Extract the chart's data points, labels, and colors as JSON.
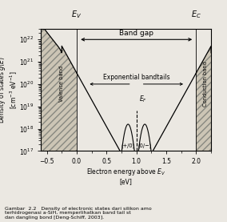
{
  "xlabel": "Electron energy above $E_V$\n[eV]",
  "ylabel": "Density of states $g(E)$\n[cm$^{-3}$ eV$^{-1}$]",
  "xlim": [
    -0.6,
    2.25
  ],
  "ymin": 1e+17,
  "ymax": 3e+22,
  "EV": 0.0,
  "EC": 2.0,
  "EF": 1.0,
  "band_gap_label": "Band gap",
  "valence_band_label": "Valence band",
  "conduction_band_label": "Conduction band",
  "exp_bandtails_label": "Exponential bandtails",
  "dangling_pos_label": "(+/0)",
  "dangling_neg_label": "(0/−)",
  "EF_label": "$E_F$",
  "EV_label": "$E_V$",
  "EC_label": "$E_C$",
  "bg_color": "#ebe8e2",
  "caption": "Gambar  2.2   Density of electronic states dari silikon amo\nterhidrogenasi a-SiH, memperlihatkan band tail st\ndan dangling bond [Deng-Schiff, 2003]."
}
